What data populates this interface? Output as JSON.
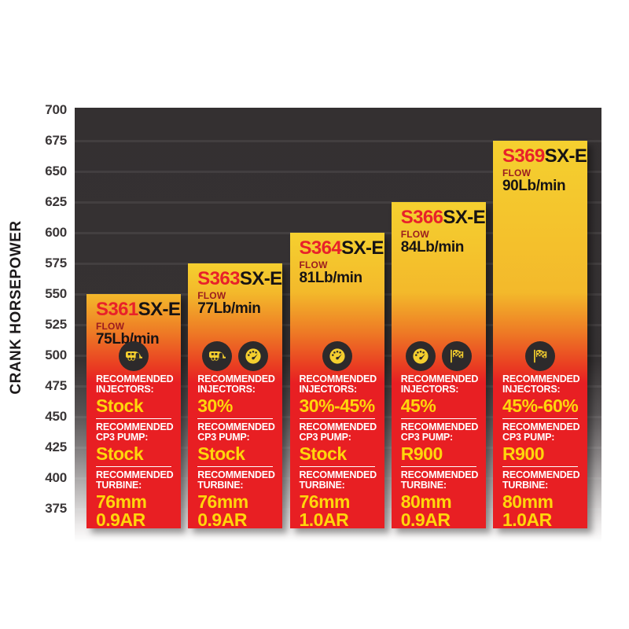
{
  "chart_data": {
    "type": "bar",
    "title": "",
    "ylabel": "CRANK HORSEPOWER",
    "xlabel": "",
    "ylim": [
      375,
      700
    ],
    "ytick_step": 25,
    "yticks": [
      700,
      675,
      650,
      625,
      600,
      575,
      550,
      525,
      500,
      475,
      450,
      425,
      400,
      375
    ],
    "grid": true,
    "legend": "none",
    "categories": [
      "S361SX-E",
      "S363SX-E",
      "S364SX-E",
      "S366SX-E",
      "S369SX-E"
    ],
    "values": [
      550,
      575,
      600,
      625,
      675
    ],
    "bars": [
      {
        "model_prefix": "S361",
        "model_suffix": "SX-E",
        "flow_label": "FLOW",
        "flow_value": "75Lb/min",
        "crank_hp": 550,
        "icons": [
          "towing-icon"
        ],
        "sections": [
          {
            "label_lines": [
              "RECOMMENDED",
              "INJECTORS:"
            ],
            "value_lines": [
              "Stock"
            ]
          },
          {
            "label_lines": [
              "RECOMMENDED",
              "CP3 PUMP:"
            ],
            "value_lines": [
              "Stock"
            ]
          },
          {
            "label_lines": [
              "RECOMMENDED",
              "TURBINE:"
            ],
            "value_lines": [
              "76mm",
              "0.9AR"
            ]
          }
        ]
      },
      {
        "model_prefix": "S363",
        "model_suffix": "SX-E",
        "flow_label": "FLOW",
        "flow_value": "77Lb/min",
        "crank_hp": 575,
        "icons": [
          "towing-icon",
          "gauge-icon"
        ],
        "sections": [
          {
            "label_lines": [
              "RECOMMENDED",
              "INJECTORS:"
            ],
            "value_lines": [
              "30%"
            ]
          },
          {
            "label_lines": [
              "RECOMMENDED",
              "CP3 PUMP:"
            ],
            "value_lines": [
              "Stock"
            ]
          },
          {
            "label_lines": [
              "RECOMMENDED",
              "TURBINE:"
            ],
            "value_lines": [
              "76mm",
              "0.9AR"
            ]
          }
        ]
      },
      {
        "model_prefix": "S364",
        "model_suffix": "SX-E",
        "flow_label": "FLOW",
        "flow_value": "81Lb/min",
        "crank_hp": 600,
        "icons": [
          "gauge-icon"
        ],
        "sections": [
          {
            "label_lines": [
              "RECOMMENDED",
              "INJECTORS:"
            ],
            "value_lines": [
              "30%-45%"
            ]
          },
          {
            "label_lines": [
              "RECOMMENDED",
              "CP3 PUMP:"
            ],
            "value_lines": [
              "Stock"
            ]
          },
          {
            "label_lines": [
              "RECOMMENDED",
              "TURBINE:"
            ],
            "value_lines": [
              "76mm",
              "1.0AR"
            ]
          }
        ]
      },
      {
        "model_prefix": "S366",
        "model_suffix": "SX-E",
        "flow_label": "FLOW",
        "flow_value": "84Lb/min",
        "crank_hp": 625,
        "icons": [
          "gauge-icon",
          "race-flag-icon"
        ],
        "sections": [
          {
            "label_lines": [
              "RECOMMENDED",
              "INJECTORS:"
            ],
            "value_lines": [
              "45%"
            ]
          },
          {
            "label_lines": [
              "RECOMMENDED",
              "CP3 PUMP:"
            ],
            "value_lines": [
              "R900"
            ]
          },
          {
            "label_lines": [
              "RECOMMENDED",
              "TURBINE:"
            ],
            "value_lines": [
              "80mm",
              "0.9AR"
            ]
          }
        ]
      },
      {
        "model_prefix": "S369",
        "model_suffix": "SX-E",
        "flow_label": "FLOW",
        "flow_value": "90Lb/min",
        "crank_hp": 675,
        "icons": [
          "race-flag-icon"
        ],
        "sections": [
          {
            "label_lines": [
              "RECOMMENDED",
              "INJECTORS:"
            ],
            "value_lines": [
              "45%-60%"
            ]
          },
          {
            "label_lines": [
              "RECOMMENDED",
              "CP3 PUMP:"
            ],
            "value_lines": [
              "R900"
            ]
          },
          {
            "label_lines": [
              "RECOMMENDED",
              "TURBINE:"
            ],
            "value_lines": [
              "80mm",
              "1.0AR"
            ]
          }
        ]
      }
    ]
  },
  "colors": {
    "page_background": "#ffffff",
    "plot_background_dark": "#343031",
    "gridline": "#403c3d",
    "bar_gradient_top": "#f5d02f",
    "bar_gradient_bottom": "#e81f23",
    "model_prefix_red": "#e8212a",
    "model_suffix_black": "#161314",
    "flow_label_maroon": "#9b1b1f",
    "section_label_white": "#ffffff",
    "section_value_yellow": "#ffd60b",
    "icon_circle_dark": "#2d2a2b",
    "axis_text_dark": "#3a3637"
  }
}
